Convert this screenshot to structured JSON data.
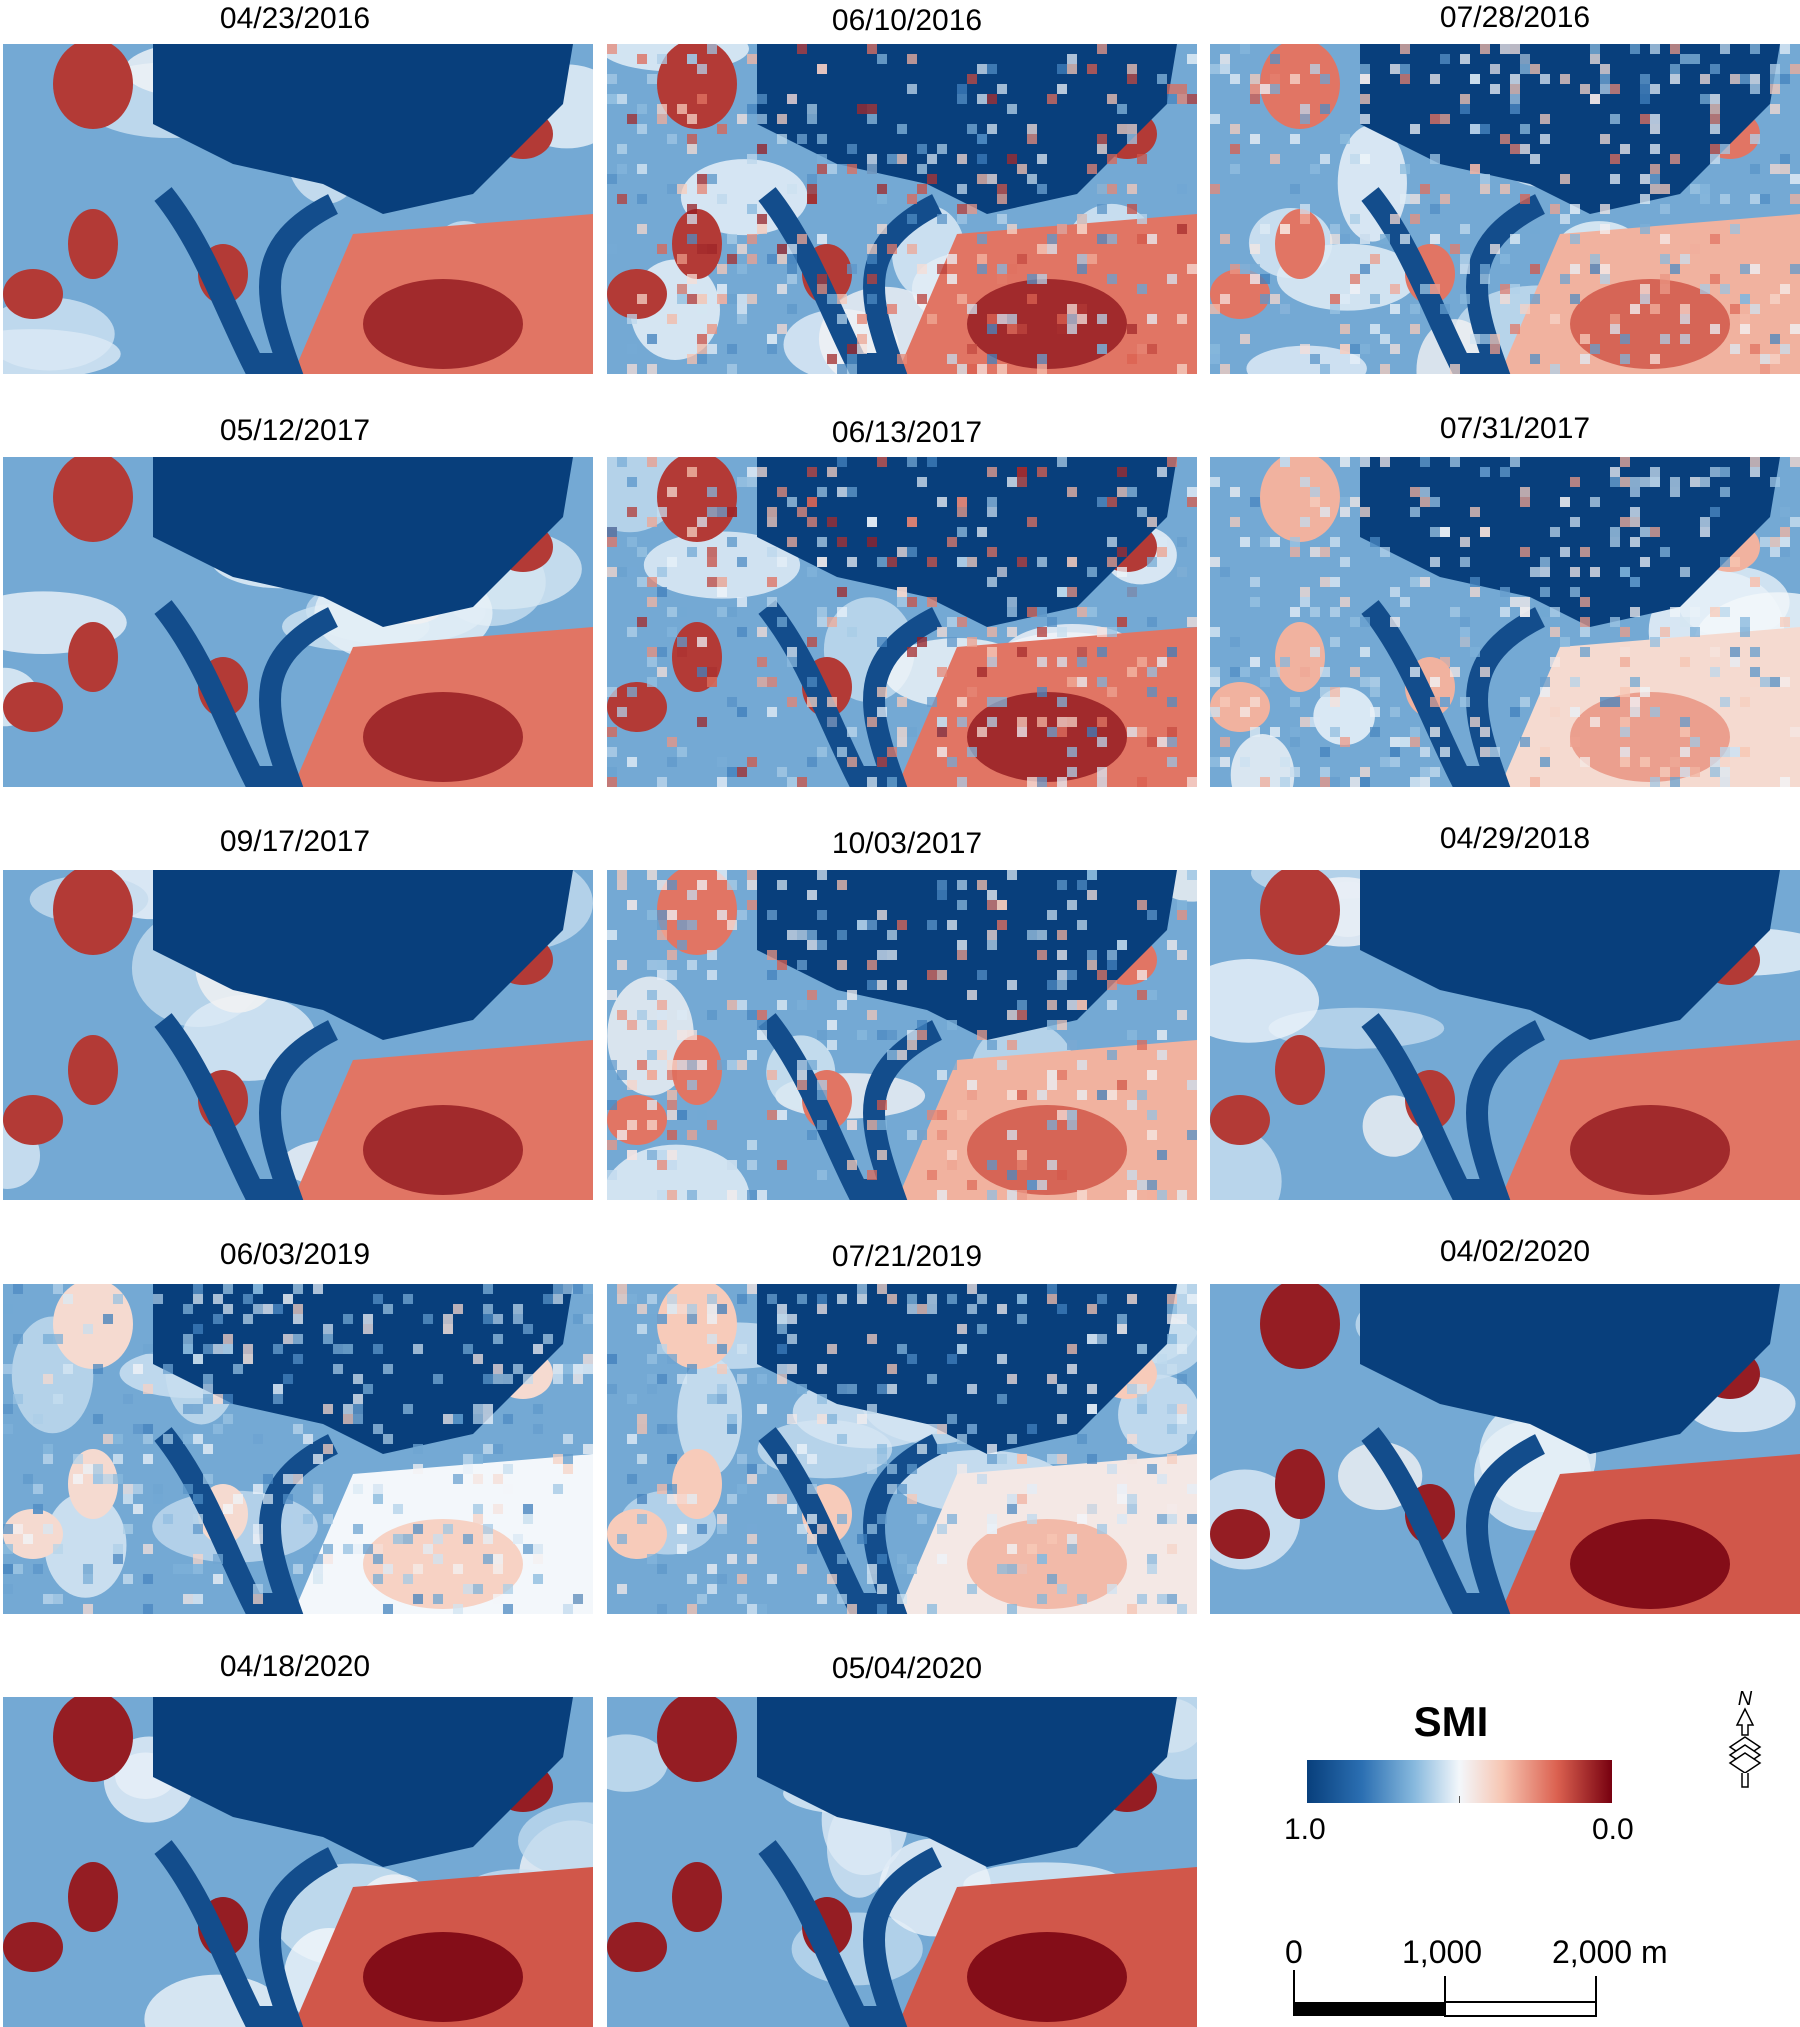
{
  "panels": [
    {
      "date": "04/23/2016",
      "level": 0.55,
      "style": "smooth"
    },
    {
      "date": "06/10/2016",
      "level": 0.55,
      "style": "pixel"
    },
    {
      "date": "07/28/2016",
      "level": 0.45,
      "style": "pixel"
    },
    {
      "date": "05/12/2017",
      "level": 0.55,
      "style": "smooth"
    },
    {
      "date": "06/13/2017",
      "level": 0.55,
      "style": "pixel"
    },
    {
      "date": "07/31/2017",
      "level": 0.35,
      "style": "pixel"
    },
    {
      "date": "09/17/2017",
      "level": 0.55,
      "style": "smooth"
    },
    {
      "date": "10/03/2017",
      "level": 0.45,
      "style": "pixel"
    },
    {
      "date": "04/29/2018",
      "level": 0.55,
      "style": "smooth"
    },
    {
      "date": "06/03/2019",
      "level": 0.25,
      "style": "pixel"
    },
    {
      "date": "07/21/2019",
      "level": 0.3,
      "style": "pixel"
    },
    {
      "date": "04/02/2020",
      "level": 0.6,
      "style": "smooth"
    },
    {
      "date": "04/18/2020",
      "level": 0.6,
      "style": "smooth"
    },
    {
      "date": "05/04/2020",
      "level": 0.6,
      "style": "smooth"
    }
  ],
  "legend": {
    "title": "SMI",
    "min_label": "1.0",
    "max_label": "0.0",
    "colors": {
      "wet": "#083f7c",
      "mid": "#f3f7fb",
      "dry": "#77000f"
    }
  },
  "scale_bar": {
    "label_0": "0",
    "label_1": "1,000",
    "label_2": "2,000 m"
  },
  "north_arrow": {
    "label": "N"
  }
}
